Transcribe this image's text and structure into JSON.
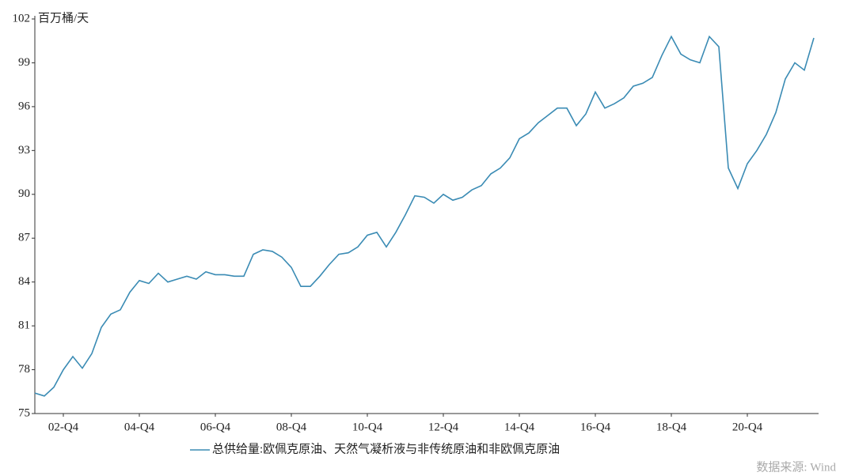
{
  "chart_data": {
    "type": "line",
    "y_label": "百万桶/天",
    "source": "数据来源: Wind",
    "categories": [
      null,
      null,
      null,
      "02-Q4",
      null,
      null,
      null,
      null,
      null,
      null,
      null,
      "04-Q4",
      null,
      null,
      null,
      null,
      null,
      null,
      null,
      "06-Q4",
      null,
      null,
      null,
      null,
      null,
      null,
      null,
      "08-Q4",
      null,
      null,
      null,
      null,
      null,
      null,
      null,
      "10-Q4",
      null,
      null,
      null,
      null,
      null,
      null,
      null,
      "12-Q4",
      null,
      null,
      null,
      null,
      null,
      null,
      null,
      "14-Q4",
      null,
      null,
      null,
      null,
      null,
      null,
      null,
      "16-Q4",
      null,
      null,
      null,
      null,
      null,
      null,
      null,
      "18-Q4",
      null,
      null,
      null,
      null,
      null,
      null,
      null,
      "20-Q4",
      null,
      null,
      null,
      null,
      null,
      null,
      null
    ],
    "series": [
      {
        "name": "总供给量:欧佩克原油、天然气凝析液与非传统原油和非欧佩克原油",
        "color": "#3a8bb4",
        "values": [
          76.4,
          76.2,
          76.8,
          78.0,
          78.9,
          78.1,
          79.1,
          80.9,
          81.8,
          82.1,
          83.3,
          84.1,
          83.9,
          84.6,
          84.0,
          84.2,
          84.4,
          84.2,
          84.7,
          84.5,
          84.5,
          84.4,
          84.4,
          85.9,
          86.2,
          86.1,
          85.7,
          85.0,
          83.7,
          83.7,
          84.4,
          85.2,
          85.9,
          86.0,
          86.4,
          87.2,
          87.4,
          86.4,
          87.4,
          88.6,
          89.9,
          89.8,
          89.4,
          90.0,
          89.6,
          89.8,
          90.3,
          90.6,
          91.4,
          91.8,
          92.5,
          93.8,
          94.2,
          94.9,
          95.4,
          95.9,
          95.9,
          94.7,
          95.5,
          97.0,
          95.9,
          96.2,
          96.6,
          97.4,
          97.6,
          98.0,
          99.5,
          100.8,
          99.6,
          99.2,
          99.0,
          100.8,
          100.1,
          91.8,
          90.4,
          92.1,
          93.0,
          94.1,
          95.6,
          97.9,
          99.0,
          98.5,
          100.7
        ]
      }
    ],
    "ylim": [
      75,
      102
    ],
    "yticks": [
      75,
      78,
      81,
      84,
      87,
      90,
      93,
      96,
      99,
      102
    ]
  }
}
